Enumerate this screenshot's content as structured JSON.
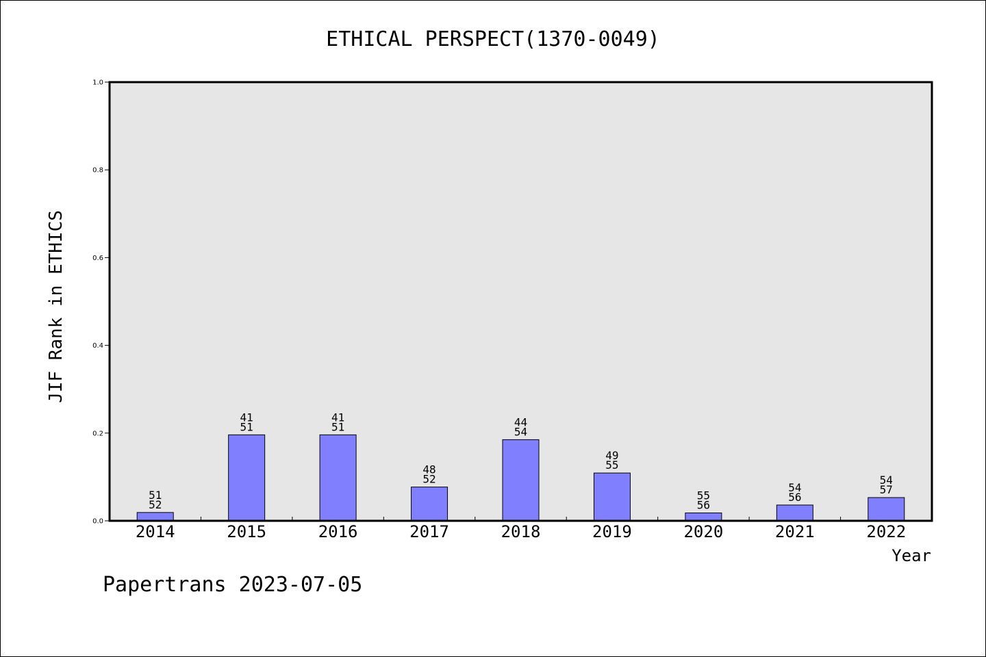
{
  "chart_data": {
    "type": "bar",
    "title": "ETHICAL PERSPECT(1370-0049)",
    "xlabel": "Year",
    "ylabel": "JIF Rank in ETHICS",
    "ylim": [
      0,
      1.0
    ],
    "yticks": [
      "0.0",
      "0.2",
      "0.4",
      "0.6",
      "0.8",
      "1.0"
    ],
    "grid": false,
    "categories": [
      "2014",
      "2015",
      "2016",
      "2017",
      "2018",
      "2019",
      "2020",
      "2021",
      "2022"
    ],
    "values": [
      0.019,
      0.196,
      0.196,
      0.077,
      0.185,
      0.109,
      0.018,
      0.036,
      0.053
    ],
    "rank_labels": [
      [
        "51",
        "52"
      ],
      [
        "41",
        "51"
      ],
      [
        "41",
        "51"
      ],
      [
        "48",
        "52"
      ],
      [
        "44",
        "54"
      ],
      [
        "49",
        "55"
      ],
      [
        "55",
        "56"
      ],
      [
        "54",
        "56"
      ],
      [
        "54",
        "57"
      ]
    ],
    "colors": {
      "bar_fill": "#8080ff",
      "bar_stroke": "#000000",
      "plot_background": "#e6e6e6",
      "frame": "#000000"
    }
  },
  "footer": {
    "text": "Papertrans 2023-07-05"
  }
}
